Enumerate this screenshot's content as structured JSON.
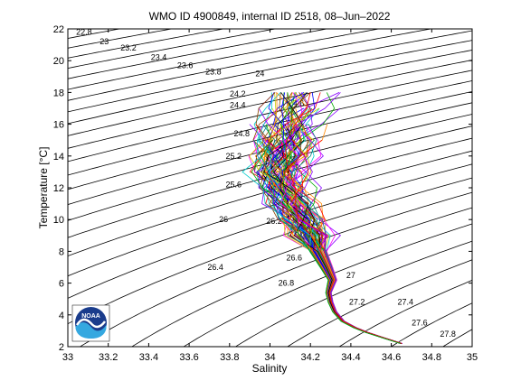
{
  "chart_data": {
    "type": "line",
    "title": "WMO ID 4900849, internal ID 2518, 08–Jun–2022",
    "xlabel": "Salinity",
    "ylabel": "Temperature [°C]",
    "xlim": [
      33,
      35
    ],
    "ylim": [
      2,
      22
    ],
    "xticks": [
      "33",
      "33.2",
      "33.4",
      "33.6",
      "33.8",
      "34",
      "34.2",
      "34.4",
      "34.6",
      "34.8",
      "35"
    ],
    "yticks": [
      "2",
      "4",
      "6",
      "8",
      "10",
      "12",
      "14",
      "16",
      "18",
      "20",
      "22"
    ],
    "grid": false,
    "legend": "none",
    "logo": "NOAA",
    "density_contours": {
      "labels": [
        {
          "label": "22.8",
          "s": 33.08,
          "t": 21.8
        },
        {
          "label": "23",
          "s": 33.18,
          "t": 21.2
        },
        {
          "label": "23.2",
          "s": 33.3,
          "t": 20.8
        },
        {
          "label": "23.4",
          "s": 33.45,
          "t": 20.2
        },
        {
          "label": "23.6",
          "s": 33.58,
          "t": 19.7
        },
        {
          "label": "23.8",
          "s": 33.72,
          "t": 19.3
        },
        {
          "label": "24",
          "s": 33.95,
          "t": 19.2
        },
        {
          "label": "24.2",
          "s": 33.84,
          "t": 17.9
        },
        {
          "label": "24.4",
          "s": 33.84,
          "t": 17.2
        },
        {
          "label": "24.6",
          "s": 34.13,
          "t": 17.3
        },
        {
          "label": "24.8",
          "s": 33.86,
          "t": 15.4
        },
        {
          "label": "25",
          "s": 34.1,
          "t": 15.5
        },
        {
          "label": "25.2",
          "s": 33.82,
          "t": 14.0
        },
        {
          "label": "25.4",
          "s": 34.1,
          "t": 13.5
        },
        {
          "label": "25.6",
          "s": 33.82,
          "t": 12.2
        },
        {
          "label": "25.8",
          "s": 34.02,
          "t": 11.9
        },
        {
          "label": "26",
          "s": 33.77,
          "t": 10.0
        },
        {
          "label": "26.2",
          "s": 34.02,
          "t": 9.9
        },
        {
          "label": "26.4",
          "s": 33.73,
          "t": 7.0
        },
        {
          "label": "26.6",
          "s": 34.12,
          "t": 7.6
        },
        {
          "label": "26.8",
          "s": 34.08,
          "t": 6.0
        },
        {
          "label": "27",
          "s": 34.4,
          "t": 6.5
        },
        {
          "label": "27.2",
          "s": 34.43,
          "t": 4.8
        },
        {
          "label": "27.4",
          "s": 34.67,
          "t": 4.8
        },
        {
          "label": "27.6",
          "s": 34.74,
          "t": 3.5
        },
        {
          "label": "27.8",
          "s": 34.88,
          "t": 2.8
        }
      ]
    },
    "series": [
      {
        "values": [
          [
            34.65,
            2.2
          ],
          [
            34.55,
            2.6
          ],
          [
            34.48,
            2.9
          ],
          [
            34.42,
            3.2
          ],
          [
            34.36,
            3.6
          ],
          [
            34.32,
            4.2
          ],
          [
            34.3,
            4.8
          ],
          [
            34.29,
            5.4
          ],
          [
            34.31,
            6.2
          ],
          [
            34.28,
            7.0
          ],
          [
            34.24,
            8.0
          ],
          [
            34.2,
            9.0
          ],
          [
            34.16,
            10.0
          ],
          [
            34.12,
            11.0
          ],
          [
            34.08,
            12.0
          ],
          [
            34.05,
            13.0
          ],
          [
            34.07,
            14.0
          ],
          [
            34.09,
            15.0
          ],
          [
            34.1,
            16.0
          ],
          [
            34.12,
            17.0
          ],
          [
            34.15,
            18.0
          ]
        ]
      }
    ]
  }
}
